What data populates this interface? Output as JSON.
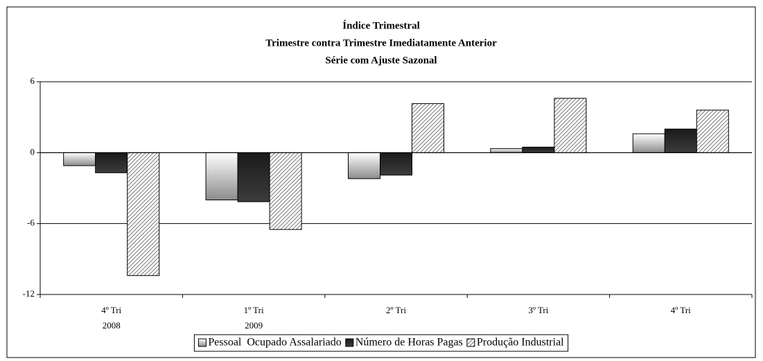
{
  "chart_data": {
    "type": "bar",
    "title": "Índice Trimestral",
    "subtitle": [
      "Trimestre contra Trimestre Imediatamente Anterior",
      "Série com Ajuste Sazonal"
    ],
    "categories": [
      [
        "4º Tri",
        "2008"
      ],
      [
        "1º Tri",
        "2009"
      ],
      [
        "2º Tri"
      ],
      [
        "3º Tri"
      ],
      [
        "4º Tri"
      ]
    ],
    "series": [
      {
        "name": "Pessoal  Ocupado Assalariado",
        "color": "#8c8c8c",
        "fill": "gradient",
        "values": [
          -1.1,
          -4.0,
          -2.2,
          0.35,
          1.6
        ]
      },
      {
        "name": "Número de Horas Pagas",
        "color": "#1a1a1a",
        "fill": "gradient",
        "values": [
          -1.7,
          -4.15,
          -1.9,
          0.47,
          2.0
        ]
      },
      {
        "name": "Produção Industrial",
        "color": "#555555",
        "fill": "hatch",
        "values": [
          -10.4,
          -6.5,
          4.15,
          4.6,
          3.6
        ]
      }
    ],
    "ylim": [
      -12,
      6
    ],
    "yticks": [
      -12,
      -6,
      0,
      6
    ],
    "grid": true,
    "legend": "bottom"
  }
}
